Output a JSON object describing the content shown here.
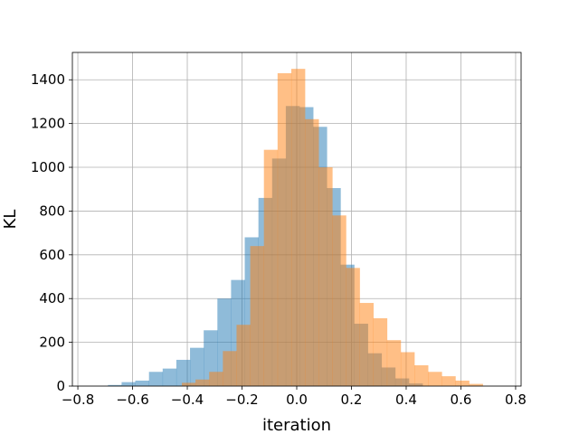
{
  "chart_data": {
    "type": "bar",
    "xlabel": "iteration",
    "ylabel": "KL",
    "xlim": [
      -0.82,
      0.82
    ],
    "ylim": [
      0,
      1525
    ],
    "grid": true,
    "xticks": [
      -0.8,
      -0.6,
      -0.4,
      -0.2,
      0.0,
      0.2,
      0.4,
      0.6,
      0.8
    ],
    "xtick_labels": [
      "−0.8",
      "−0.6",
      "−0.4",
      "−0.2",
      "0.0",
      "0.2",
      "0.4",
      "0.6",
      "0.8"
    ],
    "yticks": [
      0,
      200,
      400,
      600,
      800,
      1000,
      1200,
      1400
    ],
    "ytick_labels": [
      "0",
      "200",
      "400",
      "600",
      "800",
      "1000",
      "1200",
      "1400"
    ],
    "series": [
      {
        "color": "#1f77b4",
        "opacity": 0.5,
        "bin_edges": [
          -0.69,
          -0.64,
          -0.59,
          -0.54,
          -0.49,
          -0.44,
          -0.39,
          -0.34,
          -0.29,
          -0.24,
          -0.19,
          -0.14,
          -0.09,
          -0.04,
          0.01,
          0.06,
          0.11,
          0.16,
          0.21,
          0.26,
          0.31,
          0.36,
          0.41,
          0.46
        ],
        "counts": [
          5,
          18,
          25,
          65,
          80,
          120,
          175,
          255,
          400,
          485,
          680,
          860,
          1040,
          1280,
          1275,
          1185,
          905,
          555,
          285,
          150,
          85,
          35,
          12
        ]
      },
      {
        "color": "#ff7f0e",
        "opacity": 0.5,
        "bin_edges": [
          -0.42,
          -0.37,
          -0.32,
          -0.27,
          -0.22,
          -0.17,
          -0.12,
          -0.07,
          -0.02,
          0.03,
          0.08,
          0.13,
          0.18,
          0.23,
          0.28,
          0.33,
          0.38,
          0.43,
          0.48,
          0.53,
          0.58,
          0.63,
          0.68
        ],
        "counts": [
          15,
          30,
          65,
          160,
          280,
          640,
          1080,
          1430,
          1450,
          1220,
          1000,
          780,
          540,
          380,
          310,
          210,
          155,
          95,
          65,
          45,
          25,
          10
        ]
      }
    ]
  }
}
